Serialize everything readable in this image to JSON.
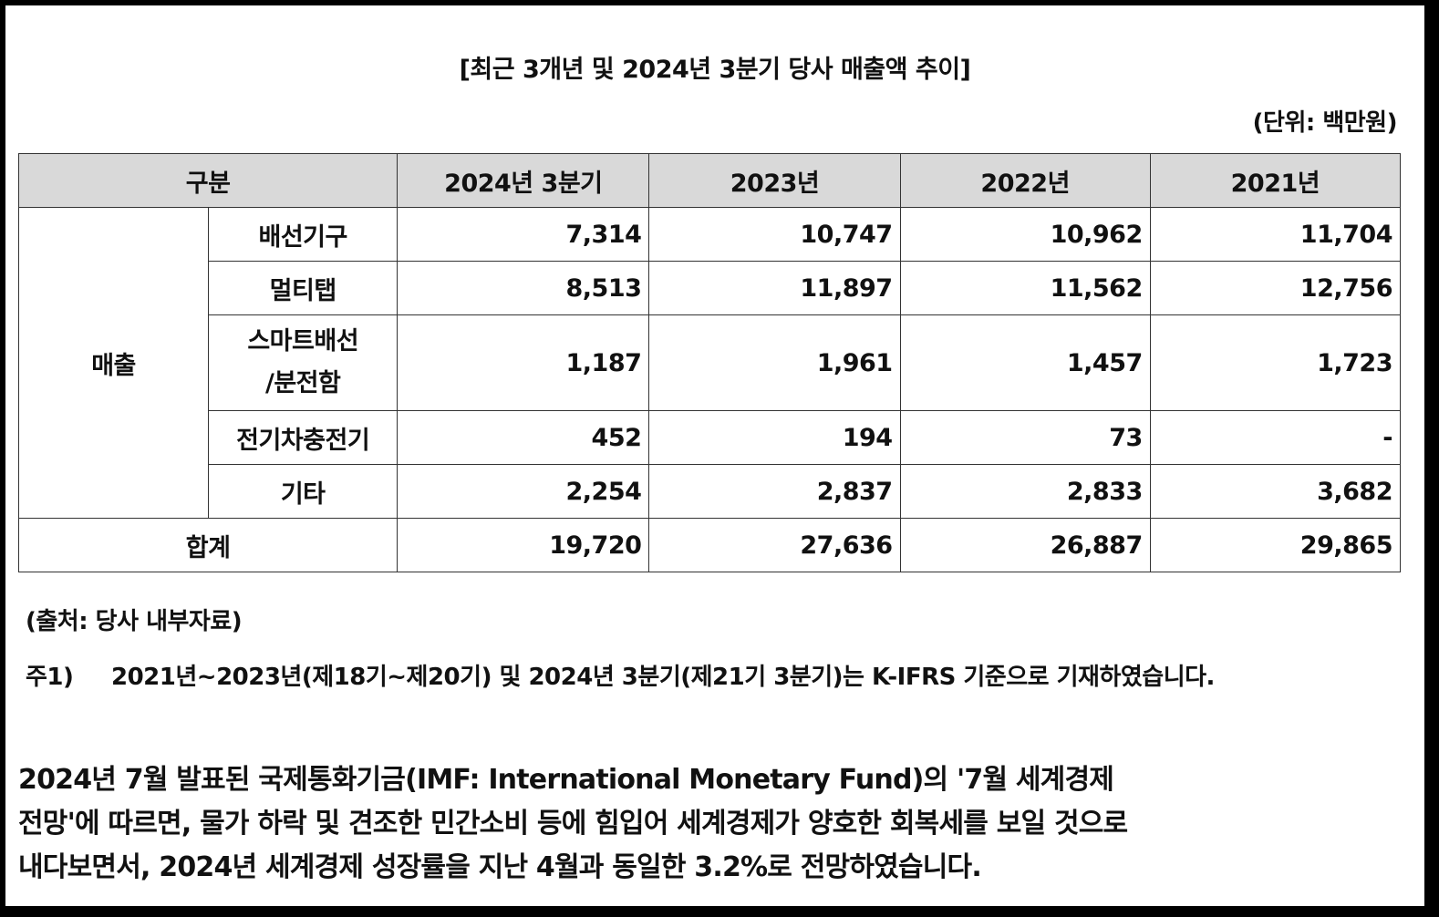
{
  "title": "[최근 3개년 및 2024년 3분기 당사 매출액 추이]",
  "unit": "(단위: 백만원)",
  "table": {
    "headers": [
      "구분",
      "2024년 3분기",
      "2023년",
      "2022년",
      "2021년"
    ],
    "group_label": "매출",
    "rows": [
      {
        "label": "배선기구",
        "label_line2": "",
        "values": [
          "7,314",
          "10,747",
          "10,962",
          "11,704"
        ]
      },
      {
        "label": "멀티탭",
        "label_line2": "",
        "values": [
          "8,513",
          "11,897",
          "11,562",
          "12,756"
        ]
      },
      {
        "label": "스마트배선",
        "label_line2": "/분전함",
        "values": [
          "1,187",
          "1,961",
          "1,457",
          "1,723"
        ]
      },
      {
        "label": "전기차충전기",
        "label_line2": "",
        "values": [
          "452",
          "194",
          "73",
          "-"
        ]
      },
      {
        "label": "기타",
        "label_line2": "",
        "values": [
          "2,254",
          "2,837",
          "2,833",
          "3,682"
        ]
      }
    ],
    "total": {
      "label": "합계",
      "values": [
        "19,720",
        "27,636",
        "26,887",
        "29,865"
      ]
    }
  },
  "source": "(출처: 당사 내부자료)",
  "note": {
    "mark": "주1)",
    "text": "2021년~2023년(제18기~제20기) 및 2024년 3분기(제21기 3분기)는 K-IFRS 기준으로 기재하였습니다."
  },
  "paragraph": "2024년 7월 발표된 국제통화기금(IMF: International Monetary Fund)의 '7월 세계경제전망'에 따르면, 물가 하락 및 견조한 민간소비 등에 힘입어 세계경제가 양호한 회복세를 보일 것으로 내다보면서, 2024년 세계경제 성장률을 지난 4월과 동일한 3.2%로 전망하였습니다."
}
